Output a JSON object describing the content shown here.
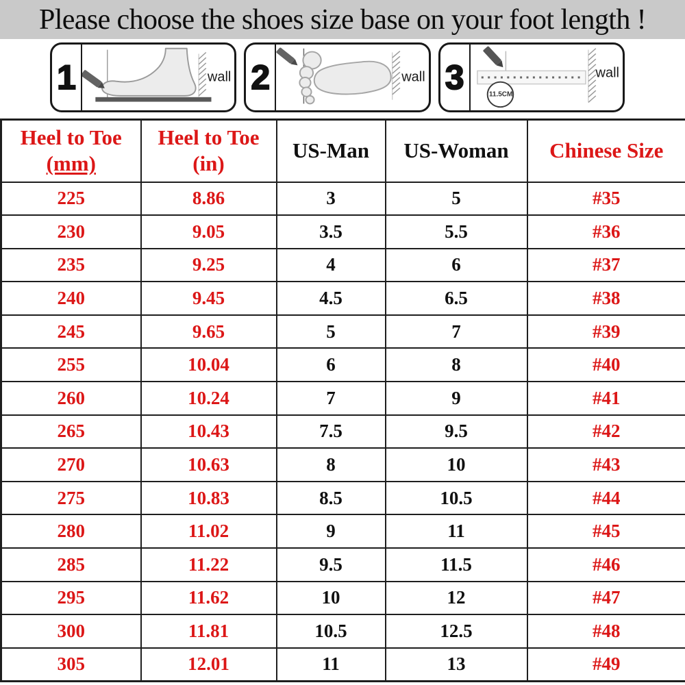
{
  "title": "Please choose the shoes size base on your foot length !",
  "colors": {
    "accent_red": "#dc1717",
    "title_bar_bg": "#c9c9c9",
    "table_border": "#1e1e1e"
  },
  "steps": [
    {
      "number": "1",
      "wall_label": "wall"
    },
    {
      "number": "2",
      "wall_label": "wall"
    },
    {
      "number": "3",
      "wall_label": "wall",
      "ruler_label": "11.5CM"
    }
  ],
  "table": {
    "headers": [
      {
        "line1": "Heel to Toe",
        "line2": "(mm)"
      },
      {
        "line1": "Heel to Toe",
        "line2": "(in)"
      },
      {
        "line1": "US-Man"
      },
      {
        "line1": "US-Woman"
      },
      {
        "line1": "Chinese Size"
      }
    ],
    "rows": [
      [
        "225",
        "8.86",
        "3",
        "5",
        "#35"
      ],
      [
        "230",
        "9.05",
        "3.5",
        "5.5",
        "#36"
      ],
      [
        "235",
        "9.25",
        "4",
        "6",
        "#37"
      ],
      [
        "240",
        "9.45",
        "4.5",
        "6.5",
        "#38"
      ],
      [
        "245",
        "9.65",
        "5",
        "7",
        "#39"
      ],
      [
        "255",
        "10.04",
        "6",
        "8",
        "#40"
      ],
      [
        "260",
        "10.24",
        "7",
        "9",
        "#41"
      ],
      [
        "265",
        "10.43",
        "7.5",
        "9.5",
        "#42"
      ],
      [
        "270",
        "10.63",
        "8",
        "10",
        "#43"
      ],
      [
        "275",
        "10.83",
        "8.5",
        "10.5",
        "#44"
      ],
      [
        "280",
        "11.02",
        "9",
        "11",
        "#45"
      ],
      [
        "285",
        "11.22",
        "9.5",
        "11.5",
        "#46"
      ],
      [
        "295",
        "11.62",
        "10",
        "12",
        "#47"
      ],
      [
        "300",
        "11.81",
        "10.5",
        "12.5",
        "#48"
      ],
      [
        "305",
        "12.01",
        "11",
        "13",
        "#49"
      ]
    ]
  }
}
